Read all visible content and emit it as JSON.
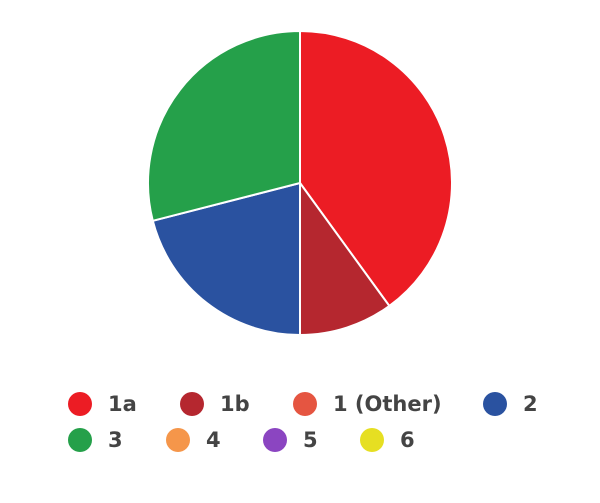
{
  "chart_data": {
    "type": "pie",
    "categories": [
      "1a",
      "1b",
      "1 (Other)",
      "2",
      "3",
      "4",
      "5",
      "6"
    ],
    "values": [
      40,
      10,
      0,
      21,
      29,
      0,
      0,
      0
    ],
    "colors": [
      "#ec1c24",
      "#b5272f",
      "#e55541",
      "#2a52a0",
      "#25a04a",
      "#f5964a",
      "#8b45c1",
      "#e6df22"
    ],
    "legend": "bottom"
  }
}
